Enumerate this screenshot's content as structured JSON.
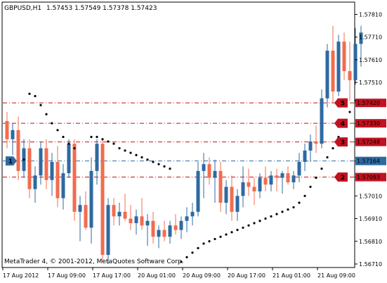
{
  "window": {
    "symbol_label": "GBPUSD,H1",
    "ohlc_label": "1.57453 1.57549 1.57378 1.57423",
    "copyright": "MetaTrader 4, © 2001-2012, MetaQuotes Software Corp."
  },
  "colors": {
    "bull": "#2e6aa1",
    "bear": "#f26c4f",
    "sar": "#000000",
    "level_line": "#c1121f",
    "level_tag": "#c1121f",
    "pivot_line": "#2e6aa1",
    "pivot_tag": "#2e6aa1"
  },
  "levels": [
    {
      "id": "5",
      "price_label": "1.57420",
      "price": 1.5742
    },
    {
      "id": "4",
      "price_label": "1.57330",
      "price": 1.5733
    },
    {
      "id": "3",
      "price_label": "1.57248",
      "price": 1.57248
    },
    {
      "id": "2",
      "price_label": "1.57093",
      "price": 1.57093
    }
  ],
  "pivot": {
    "id": "1",
    "price_label": "1.57164",
    "price": 1.57164
  },
  "chart_data": {
    "type": "candlestick",
    "yticks": [
      "1.57810",
      "1.57710",
      "1.57610",
      "1.57510",
      "1.57420",
      "1.57330",
      "1.57248",
      "1.57164",
      "1.57093",
      "1.57010",
      "1.56910",
      "1.56810",
      "1.56710"
    ],
    "xticks": [
      "17 Aug 2012",
      "17 Aug 09:00",
      "17 Aug 17:00",
      "20 Aug 01:00",
      "20 Aug 09:00",
      "20 Aug 17:00",
      "21 Aug 01:00",
      "21 Aug 09:00"
    ],
    "ylim": [
      1.5671,
      1.5783
    ],
    "candles": [
      {
        "o": 1.5734,
        "h": 1.5738,
        "l": 1.5722,
        "c": 1.5726
      },
      {
        "o": 1.5726,
        "h": 1.5733,
        "l": 1.5719,
        "c": 1.573
      },
      {
        "o": 1.573,
        "h": 1.5736,
        "l": 1.5708,
        "c": 1.5712
      },
      {
        "o": 1.5712,
        "h": 1.5726,
        "l": 1.5709,
        "c": 1.5722
      },
      {
        "o": 1.5722,
        "h": 1.5726,
        "l": 1.57,
        "c": 1.5704
      },
      {
        "o": 1.5704,
        "h": 1.5714,
        "l": 1.5698,
        "c": 1.571
      },
      {
        "o": 1.571,
        "h": 1.5725,
        "l": 1.5706,
        "c": 1.5722
      },
      {
        "o": 1.5722,
        "h": 1.5726,
        "l": 1.5704,
        "c": 1.5708
      },
      {
        "o": 1.5708,
        "h": 1.572,
        "l": 1.5701,
        "c": 1.5716
      },
      {
        "o": 1.5716,
        "h": 1.5723,
        "l": 1.5696,
        "c": 1.57
      },
      {
        "o": 1.57,
        "h": 1.5715,
        "l": 1.5695,
        "c": 1.5711
      },
      {
        "o": 1.5711,
        "h": 1.5726,
        "l": 1.5709,
        "c": 1.5724
      },
      {
        "o": 1.5724,
        "h": 1.5726,
        "l": 1.569,
        "c": 1.5694
      },
      {
        "o": 1.5694,
        "h": 1.5701,
        "l": 1.5681,
        "c": 1.5697
      },
      {
        "o": 1.5697,
        "h": 1.5703,
        "l": 1.5686,
        "c": 1.5687
      },
      {
        "o": 1.5687,
        "h": 1.5718,
        "l": 1.568,
        "c": 1.5712
      },
      {
        "o": 1.5712,
        "h": 1.5726,
        "l": 1.5706,
        "c": 1.5724
      },
      {
        "o": 1.5724,
        "h": 1.5726,
        "l": 1.5672,
        "c": 1.5675
      },
      {
        "o": 1.5675,
        "h": 1.57,
        "l": 1.5671,
        "c": 1.5697
      },
      {
        "o": 1.5697,
        "h": 1.57,
        "l": 1.5688,
        "c": 1.5692
      },
      {
        "o": 1.5692,
        "h": 1.5698,
        "l": 1.5688,
        "c": 1.5694
      },
      {
        "o": 1.5694,
        "h": 1.5702,
        "l": 1.569,
        "c": 1.5691
      },
      {
        "o": 1.5691,
        "h": 1.5697,
        "l": 1.5686,
        "c": 1.5689
      },
      {
        "o": 1.5689,
        "h": 1.5695,
        "l": 1.5684,
        "c": 1.5692
      },
      {
        "o": 1.5692,
        "h": 1.57,
        "l": 1.5686,
        "c": 1.5688
      },
      {
        "o": 1.5688,
        "h": 1.5693,
        "l": 1.5679,
        "c": 1.569
      },
      {
        "o": 1.569,
        "h": 1.5694,
        "l": 1.568,
        "c": 1.5683
      },
      {
        "o": 1.5683,
        "h": 1.5688,
        "l": 1.5678,
        "c": 1.5686
      },
      {
        "o": 1.5686,
        "h": 1.569,
        "l": 1.5681,
        "c": 1.5683
      },
      {
        "o": 1.5683,
        "h": 1.569,
        "l": 1.568,
        "c": 1.5688
      },
      {
        "o": 1.5688,
        "h": 1.5693,
        "l": 1.5684,
        "c": 1.5686
      },
      {
        "o": 1.5686,
        "h": 1.5692,
        "l": 1.5682,
        "c": 1.569
      },
      {
        "o": 1.569,
        "h": 1.5696,
        "l": 1.5685,
        "c": 1.5692
      },
      {
        "o": 1.5692,
        "h": 1.5698,
        "l": 1.5688,
        "c": 1.5694
      },
      {
        "o": 1.5694,
        "h": 1.5716,
        "l": 1.5692,
        "c": 1.5712
      },
      {
        "o": 1.5712,
        "h": 1.572,
        "l": 1.57,
        "c": 1.5715
      },
      {
        "o": 1.5715,
        "h": 1.5718,
        "l": 1.5706,
        "c": 1.5709
      },
      {
        "o": 1.5709,
        "h": 1.5717,
        "l": 1.5698,
        "c": 1.5712
      },
      {
        "o": 1.5712,
        "h": 1.5716,
        "l": 1.5694,
        "c": 1.5698
      },
      {
        "o": 1.5698,
        "h": 1.5708,
        "l": 1.5693,
        "c": 1.5705
      },
      {
        "o": 1.5705,
        "h": 1.571,
        "l": 1.569,
        "c": 1.5694
      },
      {
        "o": 1.5694,
        "h": 1.5704,
        "l": 1.569,
        "c": 1.5701
      },
      {
        "o": 1.5701,
        "h": 1.5714,
        "l": 1.5696,
        "c": 1.5707
      },
      {
        "o": 1.5707,
        "h": 1.5713,
        "l": 1.5701,
        "c": 1.5705
      },
      {
        "o": 1.5705,
        "h": 1.5709,
        "l": 1.5697,
        "c": 1.5703
      },
      {
        "o": 1.5703,
        "h": 1.5711,
        "l": 1.57,
        "c": 1.5709
      },
      {
        "o": 1.5709,
        "h": 1.5714,
        "l": 1.5703,
        "c": 1.5706
      },
      {
        "o": 1.5706,
        "h": 1.5712,
        "l": 1.5703,
        "c": 1.571
      },
      {
        "o": 1.571,
        "h": 1.5713,
        "l": 1.5703,
        "c": 1.5709
      },
      {
        "o": 1.5709,
        "h": 1.5712,
        "l": 1.5702,
        "c": 1.5711
      },
      {
        "o": 1.5711,
        "h": 1.5714,
        "l": 1.5706,
        "c": 1.5707
      },
      {
        "o": 1.5707,
        "h": 1.5712,
        "l": 1.5704,
        "c": 1.571
      },
      {
        "o": 1.571,
        "h": 1.572,
        "l": 1.5707,
        "c": 1.5716
      },
      {
        "o": 1.5716,
        "h": 1.5724,
        "l": 1.5712,
        "c": 1.5721
      },
      {
        "o": 1.5721,
        "h": 1.5728,
        "l": 1.5716,
        "c": 1.5725
      },
      {
        "o": 1.5725,
        "h": 1.5732,
        "l": 1.572,
        "c": 1.5724
      },
      {
        "o": 1.5724,
        "h": 1.5748,
        "l": 1.5722,
        "c": 1.5744
      },
      {
        "o": 1.5744,
        "h": 1.5768,
        "l": 1.574,
        "c": 1.5765
      },
      {
        "o": 1.5765,
        "h": 1.5776,
        "l": 1.5742,
        "c": 1.5747
      },
      {
        "o": 1.5747,
        "h": 1.5772,
        "l": 1.5745,
        "c": 1.5769
      },
      {
        "o": 1.5769,
        "h": 1.5773,
        "l": 1.5752,
        "c": 1.5756
      },
      {
        "o": 1.5756,
        "h": 1.5769,
        "l": 1.5743,
        "c": 1.5752
      },
      {
        "o": 1.5752,
        "h": 1.5775,
        "l": 1.575,
        "c": 1.5768
      },
      {
        "o": 1.5768,
        "h": 1.5776,
        "l": 1.5758,
        "c": 1.5773
      }
    ],
    "sar": [
      [
        3,
        1.5717
      ],
      [
        4,
        1.5746
      ],
      [
        5,
        1.5745
      ],
      [
        6,
        1.5741
      ],
      [
        7,
        1.5737
      ],
      [
        8,
        1.5733
      ],
      [
        9,
        1.573
      ],
      [
        10,
        1.5727
      ],
      [
        11,
        1.5724
      ],
      [
        12,
        1.5722
      ],
      [
        15,
        1.5727
      ],
      [
        16,
        1.5727
      ],
      [
        17,
        1.5726
      ],
      [
        18,
        1.5725
      ],
      [
        19,
        1.5724
      ],
      [
        20,
        1.5722
      ],
      [
        21,
        1.5721
      ],
      [
        22,
        1.572
      ],
      [
        23,
        1.5719
      ],
      [
        24,
        1.5718
      ],
      [
        25,
        1.5717
      ],
      [
        26,
        1.5716
      ],
      [
        27,
        1.5715
      ],
      [
        28,
        1.5714
      ],
      [
        29,
        1.5713
      ],
      [
        31,
        1.5672
      ],
      [
        32,
        1.5674
      ],
      [
        33,
        1.5676
      ],
      [
        34,
        1.5678
      ],
      [
        35,
        1.568
      ],
      [
        36,
        1.5681
      ],
      [
        37,
        1.5682
      ],
      [
        38,
        1.5683
      ],
      [
        39,
        1.5684
      ],
      [
        40,
        1.5685
      ],
      [
        41,
        1.5686
      ],
      [
        42,
        1.5687
      ],
      [
        43,
        1.5688
      ],
      [
        44,
        1.5689
      ],
      [
        45,
        1.569
      ],
      [
        46,
        1.5691
      ],
      [
        47,
        1.5692
      ],
      [
        48,
        1.5693
      ],
      [
        49,
        1.5694
      ],
      [
        50,
        1.5695
      ],
      [
        51,
        1.5696
      ],
      [
        52,
        1.5698
      ],
      [
        53,
        1.5701
      ],
      [
        54,
        1.5705
      ],
      [
        55,
        1.5709
      ],
      [
        56,
        1.5713
      ],
      [
        57,
        1.5718
      ],
      [
        58,
        1.5722
      ],
      [
        59,
        1.5727
      ],
      [
        60,
        1.5733
      ],
      [
        61,
        1.5738
      ],
      [
        62,
        1.5743
      ]
    ]
  }
}
